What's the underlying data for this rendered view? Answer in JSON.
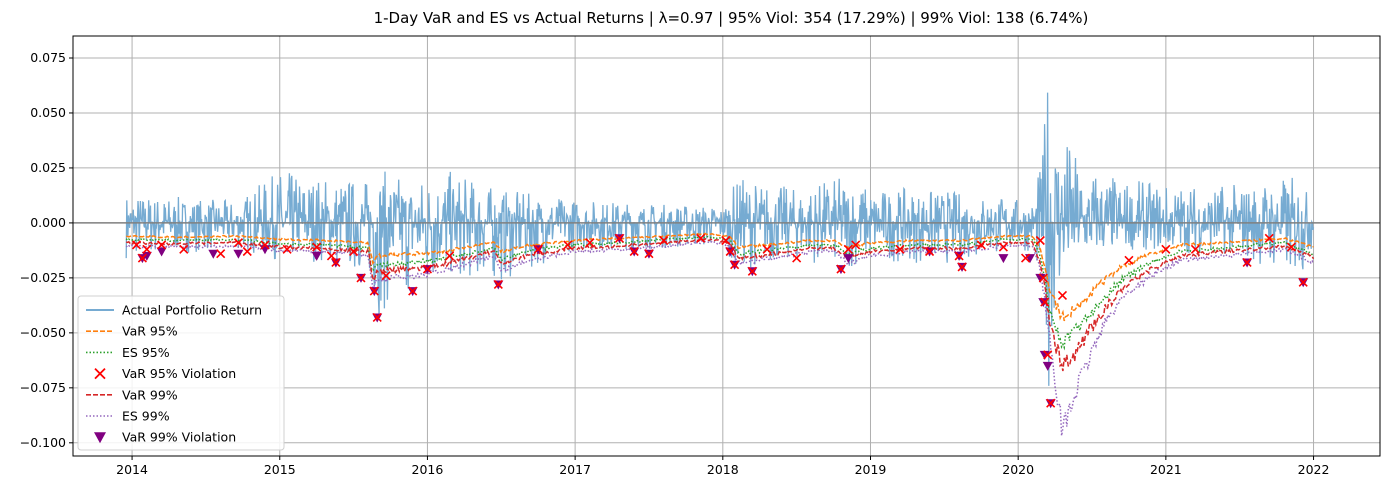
{
  "chart_data": {
    "type": "line",
    "title": "1-Day VaR and ES vs Actual Returns | λ=0.97 | 95% Viol: 354 (17.29%) | 99% Viol: 138 (6.74%)",
    "xlabel": "",
    "ylabel": "",
    "x_range": [
      2013.6,
      2022.45
    ],
    "ylim": [
      -0.106,
      0.085
    ],
    "x_ticks": [
      {
        "value": 2014,
        "label": "2014"
      },
      {
        "value": 2015,
        "label": "2015"
      },
      {
        "value": 2016,
        "label": "2016"
      },
      {
        "value": 2017,
        "label": "2017"
      },
      {
        "value": 2018,
        "label": "2018"
      },
      {
        "value": 2019,
        "label": "2019"
      },
      {
        "value": 2020,
        "label": "2020"
      },
      {
        "value": 2021,
        "label": "2021"
      },
      {
        "value": 2022,
        "label": "2022"
      }
    ],
    "y_ticks": [
      {
        "value": 0.075,
        "label": "0.075"
      },
      {
        "value": 0.05,
        "label": "0.050"
      },
      {
        "value": 0.025,
        "label": "0.025"
      },
      {
        "value": 0.0,
        "label": "0.000"
      },
      {
        "value": -0.025,
        "label": "−0.025"
      },
      {
        "value": -0.05,
        "label": "−0.050"
      },
      {
        "value": -0.075,
        "label": "−0.075"
      },
      {
        "value": -0.1,
        "label": "−0.100"
      }
    ],
    "grid": true,
    "zero_line": true,
    "legend_position": "lower-left",
    "colors": {
      "returns": "#76abd2",
      "var95": "#ff7f0e",
      "es95": "#2ca02c",
      "viol95": "#ff0000",
      "var99": "#d62728",
      "es99": "#9467bd",
      "viol99": "#800080",
      "zero": "#808080",
      "grid": "#b0b0b0"
    },
    "legend": [
      {
        "label": "Actual Portfolio Return",
        "style": "solid",
        "color_key": "returns"
      },
      {
        "label": "VaR 95%",
        "style": "dashed",
        "color_key": "var95"
      },
      {
        "label": "ES 95%",
        "style": "dotted",
        "color_key": "es95"
      },
      {
        "label": "VaR 95% Violation",
        "style": "x-marker",
        "color_key": "viol95"
      },
      {
        "label": "VaR 99%",
        "style": "dashed",
        "color_key": "var99"
      },
      {
        "label": "ES 99%",
        "style": "dotted",
        "color_key": "es99"
      },
      {
        "label": "VaR 99% Violation",
        "style": "triangle-marker",
        "color_key": "viol99"
      }
    ],
    "series": [
      {
        "name": "VaR 95%",
        "x": [
          2013.96,
          2014.3,
          2014.7,
          2015.0,
          2015.3,
          2015.6,
          2015.63,
          2015.66,
          2015.9,
          2016.1,
          2016.45,
          2016.5,
          2016.7,
          2017.0,
          2017.3,
          2017.6,
          2017.9,
          2018.05,
          2018.1,
          2018.3,
          2018.6,
          2018.75,
          2018.85,
          2019.0,
          2019.3,
          2019.6,
          2019.9,
          2020.1,
          2020.15,
          2020.18,
          2020.22,
          2020.3,
          2020.4,
          2020.55,
          2020.7,
          2020.9,
          2021.1,
          2021.4,
          2021.6,
          2021.8,
          2021.9,
          2022.0
        ],
        "y": [
          -0.006,
          -0.0065,
          -0.006,
          -0.0075,
          -0.008,
          -0.009,
          -0.018,
          -0.015,
          -0.014,
          -0.013,
          -0.009,
          -0.013,
          -0.01,
          -0.008,
          -0.007,
          -0.006,
          -0.005,
          -0.006,
          -0.011,
          -0.01,
          -0.008,
          -0.008,
          -0.011,
          -0.009,
          -0.008,
          -0.008,
          -0.006,
          -0.006,
          -0.012,
          -0.02,
          -0.032,
          -0.043,
          -0.038,
          -0.028,
          -0.02,
          -0.014,
          -0.01,
          -0.009,
          -0.008,
          -0.007,
          -0.009,
          -0.011
        ]
      },
      {
        "name": "ES 95%",
        "x": [
          2013.96,
          2014.3,
          2014.7,
          2015.0,
          2015.3,
          2015.6,
          2015.63,
          2015.66,
          2015.9,
          2016.1,
          2016.45,
          2016.5,
          2016.7,
          2017.0,
          2017.3,
          2017.6,
          2017.9,
          2018.05,
          2018.1,
          2018.3,
          2018.6,
          2018.75,
          2018.85,
          2019.0,
          2019.3,
          2019.6,
          2019.9,
          2020.1,
          2020.15,
          2020.18,
          2020.22,
          2020.3,
          2020.4,
          2020.55,
          2020.7,
          2020.9,
          2021.1,
          2021.4,
          2021.6,
          2021.8,
          2021.9,
          2022.0
        ],
        "y": [
          -0.0075,
          -0.008,
          -0.0075,
          -0.0095,
          -0.01,
          -0.0115,
          -0.023,
          -0.019,
          -0.018,
          -0.0165,
          -0.0115,
          -0.0165,
          -0.0125,
          -0.01,
          -0.009,
          -0.0075,
          -0.0065,
          -0.0075,
          -0.014,
          -0.0125,
          -0.01,
          -0.01,
          -0.014,
          -0.0115,
          -0.01,
          -0.01,
          -0.0075,
          -0.0075,
          -0.015,
          -0.026,
          -0.042,
          -0.055,
          -0.048,
          -0.036,
          -0.026,
          -0.018,
          -0.013,
          -0.0115,
          -0.01,
          -0.009,
          -0.0115,
          -0.014
        ]
      },
      {
        "name": "VaR 99%",
        "x": [
          2013.96,
          2014.3,
          2014.7,
          2015.0,
          2015.3,
          2015.6,
          2015.63,
          2015.66,
          2015.9,
          2016.1,
          2016.45,
          2016.5,
          2016.7,
          2017.0,
          2017.3,
          2017.6,
          2017.9,
          2018.05,
          2018.1,
          2018.3,
          2018.6,
          2018.75,
          2018.85,
          2019.0,
          2019.3,
          2019.6,
          2019.9,
          2020.1,
          2020.15,
          2020.18,
          2020.22,
          2020.3,
          2020.4,
          2020.55,
          2020.7,
          2020.9,
          2021.1,
          2021.4,
          2021.6,
          2021.8,
          2021.9,
          2022.0
        ],
        "y": [
          -0.009,
          -0.0095,
          -0.009,
          -0.011,
          -0.0115,
          -0.013,
          -0.026,
          -0.022,
          -0.021,
          -0.019,
          -0.013,
          -0.019,
          -0.0145,
          -0.0115,
          -0.0105,
          -0.009,
          -0.0075,
          -0.009,
          -0.016,
          -0.0145,
          -0.0115,
          -0.0115,
          -0.016,
          -0.013,
          -0.0115,
          -0.0115,
          -0.009,
          -0.009,
          -0.018,
          -0.03,
          -0.048,
          -0.066,
          -0.058,
          -0.042,
          -0.03,
          -0.021,
          -0.015,
          -0.013,
          -0.012,
          -0.0105,
          -0.013,
          -0.016
        ]
      },
      {
        "name": "ES 99%",
        "x": [
          2013.96,
          2014.3,
          2014.7,
          2015.0,
          2015.3,
          2015.6,
          2015.63,
          2015.66,
          2015.9,
          2016.1,
          2016.45,
          2016.5,
          2016.7,
          2017.0,
          2017.3,
          2017.6,
          2017.9,
          2018.05,
          2018.1,
          2018.3,
          2018.6,
          2018.75,
          2018.85,
          2019.0,
          2019.3,
          2019.6,
          2019.9,
          2020.1,
          2020.15,
          2020.18,
          2020.22,
          2020.3,
          2020.4,
          2020.55,
          2020.7,
          2020.9,
          2021.1,
          2021.4,
          2021.6,
          2021.8,
          2021.9,
          2022.0
        ],
        "y": [
          -0.0105,
          -0.011,
          -0.0105,
          -0.0125,
          -0.013,
          -0.015,
          -0.03,
          -0.026,
          -0.024,
          -0.022,
          -0.015,
          -0.022,
          -0.0165,
          -0.013,
          -0.012,
          -0.0105,
          -0.0085,
          -0.0105,
          -0.0185,
          -0.0165,
          -0.013,
          -0.013,
          -0.0185,
          -0.015,
          -0.013,
          -0.013,
          -0.0105,
          -0.0105,
          -0.021,
          -0.035,
          -0.056,
          -0.095,
          -0.075,
          -0.05,
          -0.034,
          -0.024,
          -0.017,
          -0.015,
          -0.0135,
          -0.012,
          -0.015,
          -0.018
        ]
      }
    ],
    "returns_envelope": {
      "x": [
        2013.96,
        2014.3,
        2014.7,
        2015.0,
        2015.3,
        2015.6,
        2015.66,
        2015.9,
        2016.1,
        2016.5,
        2017.0,
        2017.5,
        2018.0,
        2018.1,
        2018.5,
        2018.85,
        2019.0,
        2019.5,
        2019.9,
        2020.1,
        2020.17,
        2020.2,
        2020.22,
        2020.25,
        2020.3,
        2020.4,
        2020.55,
        2020.7,
        2021.0,
        2021.5,
        2021.9,
        2022.0
      ],
      "max": [
        0.014,
        0.012,
        0.01,
        0.024,
        0.022,
        0.02,
        0.025,
        0.02,
        0.025,
        0.015,
        0.011,
        0.009,
        0.008,
        0.021,
        0.016,
        0.022,
        0.016,
        0.015,
        0.012,
        0.01,
        0.035,
        0.075,
        0.06,
        0.053,
        0.045,
        0.03,
        0.025,
        0.02,
        0.018,
        0.018,
        0.022,
        0.009
      ],
      "min": [
        -0.016,
        -0.014,
        -0.012,
        -0.017,
        -0.018,
        -0.024,
        -0.043,
        -0.031,
        -0.025,
        -0.027,
        -0.012,
        -0.012,
        -0.011,
        -0.021,
        -0.017,
        -0.021,
        -0.017,
        -0.019,
        -0.014,
        -0.013,
        -0.036,
        -0.082,
        -0.06,
        -0.04,
        -0.03,
        -0.02,
        -0.015,
        -0.012,
        -0.013,
        -0.015,
        -0.027,
        -0.01
      ]
    },
    "violations_95": {
      "x": [
        2014.03,
        2014.07,
        2014.1,
        2014.2,
        2014.35,
        2014.6,
        2014.72,
        2014.78,
        2014.9,
        2015.05,
        2015.25,
        2015.35,
        2015.38,
        2015.5,
        2015.55,
        2015.64,
        2015.66,
        2015.72,
        2015.9,
        2016.0,
        2016.15,
        2016.48,
        2016.75,
        2016.95,
        2017.1,
        2017.3,
        2017.4,
        2017.5,
        2017.6,
        2017.85,
        2018.02,
        2018.05,
        2018.08,
        2018.2,
        2018.3,
        2018.5,
        2018.8,
        2018.85,
        2018.9,
        2019.2,
        2019.4,
        2019.6,
        2019.62,
        2019.75,
        2019.9,
        2020.05,
        2020.15,
        2020.17,
        2020.18,
        2020.2,
        2020.22,
        2020.3,
        2020.75,
        2021.0,
        2021.2,
        2021.55,
        2021.7,
        2021.85,
        2021.93
      ],
      "y": [
        -0.01,
        -0.016,
        -0.012,
        -0.01,
        -0.012,
        -0.014,
        -0.009,
        -0.013,
        -0.01,
        -0.012,
        -0.011,
        -0.015,
        -0.018,
        -0.013,
        -0.025,
        -0.031,
        -0.043,
        -0.024,
        -0.031,
        -0.021,
        -0.015,
        -0.028,
        -0.012,
        -0.01,
        -0.009,
        -0.007,
        -0.013,
        -0.014,
        -0.008,
        -0.007,
        -0.008,
        -0.013,
        -0.019,
        -0.022,
        -0.012,
        -0.016,
        -0.021,
        -0.012,
        -0.01,
        -0.012,
        -0.013,
        -0.015,
        -0.02,
        -0.01,
        -0.011,
        -0.016,
        -0.008,
        -0.025,
        -0.036,
        -0.06,
        -0.082,
        -0.033,
        -0.017,
        -0.012,
        -0.012,
        -0.018,
        -0.007,
        -0.011,
        -0.027
      ]
    },
    "violations_99": {
      "x": [
        2014.07,
        2014.1,
        2014.2,
        2014.55,
        2014.72,
        2014.9,
        2015.25,
        2015.38,
        2015.55,
        2015.64,
        2015.66,
        2015.9,
        2016.0,
        2016.48,
        2016.75,
        2017.3,
        2017.4,
        2017.5,
        2018.05,
        2018.08,
        2018.2,
        2018.8,
        2018.85,
        2019.4,
        2019.6,
        2019.62,
        2019.9,
        2020.08,
        2020.15,
        2020.17,
        2020.18,
        2020.2,
        2020.22,
        2021.55,
        2021.93
      ],
      "y": [
        -0.016,
        -0.015,
        -0.013,
        -0.014,
        -0.014,
        -0.012,
        -0.015,
        -0.018,
        -0.025,
        -0.031,
        -0.043,
        -0.031,
        -0.021,
        -0.028,
        -0.012,
        -0.007,
        -0.013,
        -0.014,
        -0.013,
        -0.019,
        -0.022,
        -0.021,
        -0.016,
        -0.013,
        -0.015,
        -0.02,
        -0.016,
        -0.016,
        -0.025,
        -0.036,
        -0.06,
        -0.065,
        -0.082,
        -0.018,
        -0.027
      ]
    }
  }
}
